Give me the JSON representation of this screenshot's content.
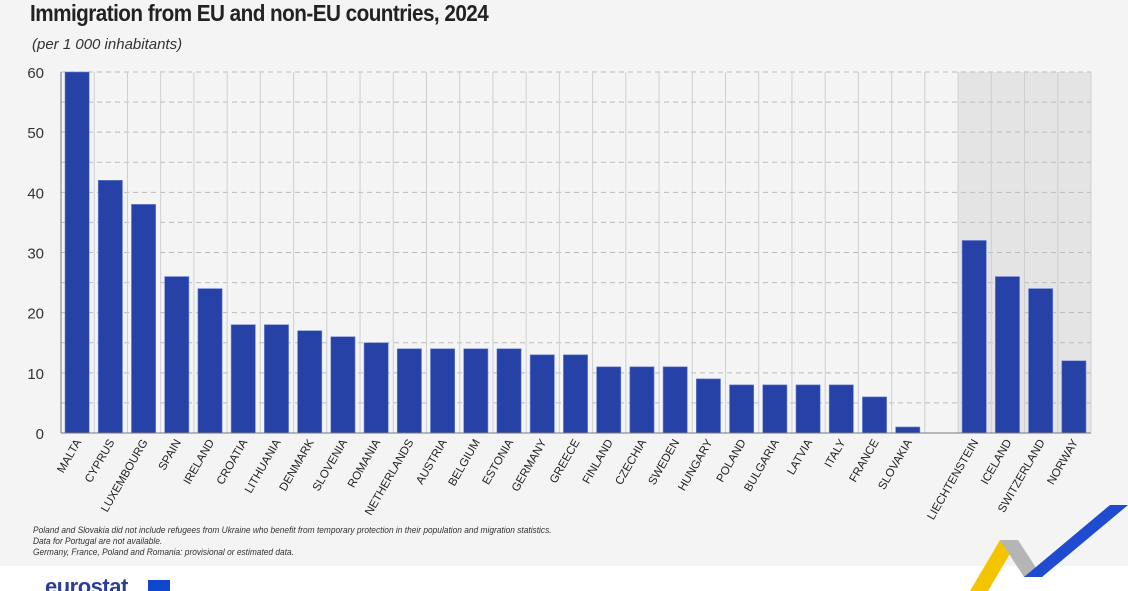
{
  "header": {
    "title": "Immigration from EU and non-EU countries, 2024",
    "subtitle": "(per 1 000 inhabitants)"
  },
  "notes": [
    "Poland and Slovakia did not include refugees from Ukraine who benefit from temporary protection in their population and migration statistics.",
    "Data for Portugal are not available.",
    "Germany, France, Poland and Romania: provisional or estimated data."
  ],
  "logo": {
    "text": "eurostat"
  },
  "colors": {
    "bar": "#2742a6",
    "panel": "#f4f4f4",
    "non_eu_shade": "#e4e4e4"
  },
  "chart_data": {
    "type": "bar",
    "title": "Immigration from EU and non-EU countries, 2024",
    "subtitle": "(per 1 000 inhabitants)",
    "ylim": [
      0,
      60
    ],
    "yticks": [
      0,
      10,
      20,
      30,
      40,
      50,
      60
    ],
    "grid": true,
    "categories": [
      "MALTA",
      "CYPRUS",
      "LUXEMBOURG",
      "SPAIN",
      "IRELAND",
      "CROATIA",
      "LITHUANIA",
      "DENMARK",
      "SLOVENIA",
      "ROMANIA",
      "NETHERLANDS",
      "AUSTRIA",
      "BELGIUM",
      "ESTONIA",
      "GERMANY",
      "GREECE",
      "FINLAND",
      "CZECHIA",
      "SWEDEN",
      "HUNGARY",
      "POLAND",
      "BULGARIA",
      "LATVIA",
      "ITALY",
      "FRANCE",
      "SLOVAKIA",
      "",
      "LIECHTENSTEIN",
      "ICELAND",
      "SWITZERLAND",
      "NORWAY"
    ],
    "values": [
      60,
      42,
      38,
      26,
      24,
      18,
      18,
      17,
      16,
      15,
      14,
      14,
      14,
      14,
      13,
      13,
      11,
      11,
      11,
      9,
      8,
      8,
      8,
      8,
      6,
      1,
      null,
      32,
      26,
      24,
      12
    ],
    "shaded_categories": [
      "LIECHTENSTEIN",
      "ICELAND",
      "SWITZERLAND",
      "NORWAY"
    ]
  }
}
